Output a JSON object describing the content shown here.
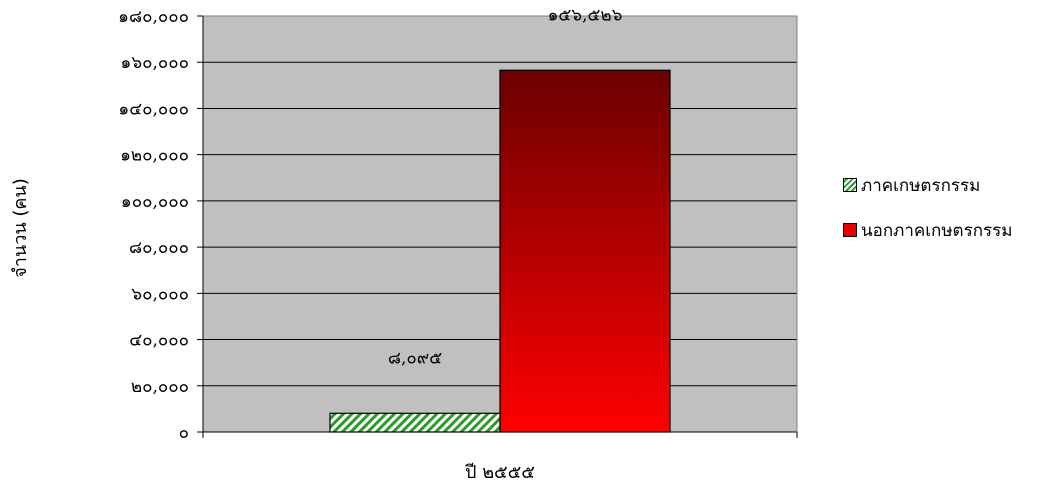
{
  "chart_data": {
    "type": "bar",
    "title": "",
    "xlabel": "ปี ๒๕๕๕",
    "ylabel": "จำนวน (คน)",
    "ylim": [
      0,
      180000
    ],
    "y_ticks": [
      "๐",
      "๒๐,๐๐๐",
      "๔๐,๐๐๐",
      "๖๐,๐๐๐",
      "๘๐,๐๐๐",
      "๑๐๐,๐๐๐",
      "๑๒๐,๐๐๐",
      "๑๔๐,๐๐๐",
      "๑๖๐,๐๐๐",
      "๑๘๐,๐๐๐"
    ],
    "categories": [
      "๒๕๕๕"
    ],
    "series": [
      {
        "name": "ภาคเกษตรกรรม",
        "values": [
          8095
        ],
        "data_label": "๘,๐๙๕",
        "color": "#2e9a2e",
        "pattern": "diagonal-hatch"
      },
      {
        "name": "นอกภาคเกษตรกรรม",
        "values": [
          156526
        ],
        "data_label": "๑๕๖,๕๒๖",
        "color_top": "#6b0000",
        "color_bottom": "#ff0000"
      }
    ],
    "plot_background": "#c0c0c0",
    "grid": true,
    "legend_position": "right"
  }
}
